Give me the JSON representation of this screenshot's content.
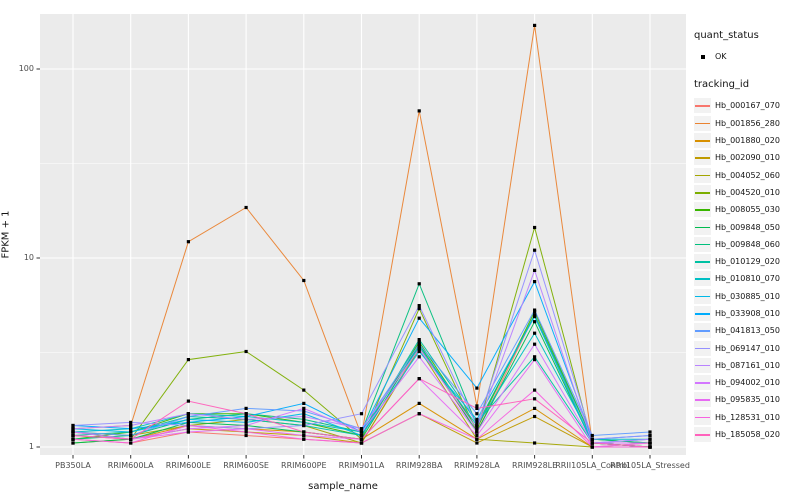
{
  "figure": {
    "background": "#FFFFFF",
    "panel_bg": "#EBEBEB",
    "grid_color": "#FFFFFF",
    "tick_color": "#333333",
    "axis_text_color": "#4D4D4D",
    "point_color": "#000000"
  },
  "legend": {
    "quant_status": {
      "title": "quant_status",
      "items": [
        {
          "label": "OK",
          "shape": "point"
        }
      ]
    },
    "tracking_id": {
      "title": "tracking_id"
    }
  },
  "chart_data": {
    "type": "line",
    "title": "",
    "xlabel": "sample_name",
    "ylabel": "FPKM + 1",
    "y_scale": "log10",
    "y_ticks": [
      1,
      10,
      100
    ],
    "y_tick_labels": [
      "1",
      "10",
      "100"
    ],
    "y_minor_ticks": [
      3.162,
      31.62
    ],
    "ylim": [
      1,
      200
    ],
    "grid": true,
    "legend_position": "right",
    "point_marker": "black-dot",
    "categories": [
      "PB350LA",
      "RRIM600LA",
      "RRIM600LE",
      "RRIM600SE",
      "RRIM600PE",
      "RRIM901LA",
      "RRIM928BA",
      "RRIM928LA",
      "RRIM928LE",
      "RRII105LA_Control",
      "RRII105LA_Stressed"
    ],
    "series": [
      {
        "name": "Hb_000167_070",
        "color": "#F8766D",
        "values": [
          1.1,
          1.05,
          1.2,
          1.15,
          1.1,
          1.05,
          3.4,
          1.2,
          5.0,
          1.05,
          1.0
        ]
      },
      {
        "name": "Hb_001856_280",
        "color": "#EA8331",
        "values": [
          1.25,
          1.3,
          12.2,
          18.5,
          7.6,
          1.15,
          60.0,
          1.65,
          170.0,
          1.05,
          1.05
        ]
      },
      {
        "name": "Hb_001880_020",
        "color": "#D89000",
        "values": [
          1.15,
          1.1,
          1.3,
          1.25,
          1.2,
          1.1,
          1.7,
          1.1,
          1.6,
          1.0,
          1.05
        ]
      },
      {
        "name": "Hb_002090_010",
        "color": "#C09B00",
        "values": [
          1.2,
          1.1,
          1.25,
          1.2,
          1.15,
          1.05,
          1.5,
          1.05,
          1.45,
          1.0,
          1.0
        ]
      },
      {
        "name": "Hb_004052_060",
        "color": "#A3A500",
        "values": [
          1.2,
          1.15,
          1.3,
          1.4,
          1.3,
          1.05,
          3.3,
          1.1,
          1.05,
          1.0,
          1.0
        ]
      },
      {
        "name": "Hb_004520_010",
        "color": "#7CAE00",
        "values": [
          1.05,
          1.1,
          2.9,
          3.2,
          2.0,
          1.1,
          5.4,
          1.2,
          14.5,
          1.05,
          1.0
        ]
      },
      {
        "name": "Hb_008055_030",
        "color": "#39B600",
        "values": [
          1.1,
          1.2,
          1.5,
          1.5,
          1.35,
          1.15,
          3.6,
          1.25,
          5.2,
          1.1,
          1.05
        ]
      },
      {
        "name": "Hb_009848_050",
        "color": "#00BB4E",
        "values": [
          1.05,
          1.1,
          1.35,
          1.3,
          1.2,
          1.1,
          3.5,
          1.2,
          4.6,
          1.05,
          1.0
        ]
      },
      {
        "name": "Hb_009848_060",
        "color": "#00BF7D",
        "values": [
          1.1,
          1.15,
          1.4,
          1.5,
          1.4,
          1.2,
          7.3,
          1.3,
          5.0,
          1.1,
          1.05
        ]
      },
      {
        "name": "Hb_010129_020",
        "color": "#00C1A3",
        "values": [
          1.15,
          1.2,
          1.45,
          1.4,
          1.3,
          1.15,
          3.7,
          1.35,
          3.0,
          1.05,
          1.0
        ]
      },
      {
        "name": "Hb_010810_070",
        "color": "#00BFC4",
        "values": [
          1.2,
          1.25,
          1.5,
          1.45,
          1.35,
          1.2,
          3.4,
          1.3,
          4.0,
          1.1,
          1.1
        ]
      },
      {
        "name": "Hb_030885_010",
        "color": "#00B8E7",
        "values": [
          1.25,
          1.2,
          1.4,
          1.35,
          1.5,
          1.15,
          3.2,
          1.4,
          4.9,
          1.05,
          1.1
        ]
      },
      {
        "name": "Hb_033908_010",
        "color": "#00ACFC",
        "values": [
          1.3,
          1.25,
          1.35,
          1.45,
          1.7,
          1.2,
          4.8,
          2.05,
          7.5,
          1.1,
          1.15
        ]
      },
      {
        "name": "Hb_041813_050",
        "color": "#619CFF",
        "values": [
          1.2,
          1.15,
          1.45,
          1.6,
          1.55,
          1.25,
          3.5,
          1.5,
          5.3,
          1.15,
          1.2
        ]
      },
      {
        "name": "Hb_069147_010",
        "color": "#9590FF",
        "values": [
          1.3,
          1.35,
          1.3,
          1.25,
          1.3,
          1.5,
          5.6,
          1.3,
          11.0,
          1.1,
          1.15
        ]
      },
      {
        "name": "Hb_087161_010",
        "color": "#B983FF",
        "values": [
          1.25,
          1.3,
          1.5,
          1.4,
          1.45,
          1.25,
          3.3,
          1.25,
          8.6,
          1.05,
          1.1
        ]
      },
      {
        "name": "Hb_094002_010",
        "color": "#D376FF",
        "values": [
          1.2,
          1.1,
          1.25,
          1.3,
          1.6,
          1.2,
          3.0,
          1.2,
          3.5,
          1.05,
          1.05
        ]
      },
      {
        "name": "Hb_095835_010",
        "color": "#E76BF3",
        "values": [
          1.15,
          1.1,
          1.2,
          1.25,
          1.15,
          1.1,
          2.3,
          1.15,
          2.9,
          1.0,
          1.05
        ]
      },
      {
        "name": "Hb_128531_010",
        "color": "#F763E0",
        "values": [
          1.1,
          1.05,
          1.3,
          1.2,
          1.1,
          1.05,
          1.5,
          1.1,
          2.0,
          1.0,
          1.0
        ]
      },
      {
        "name": "Hb_185058_020",
        "color": "#FF62BC",
        "values": [
          1.15,
          1.1,
          1.75,
          1.5,
          1.2,
          1.1,
          2.3,
          1.6,
          1.8,
          1.05,
          1.0
        ]
      }
    ]
  }
}
